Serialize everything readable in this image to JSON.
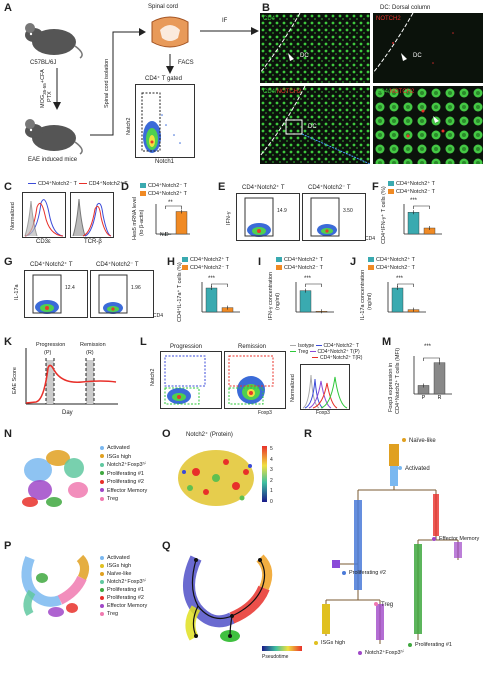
{
  "panels": {
    "A": {
      "label": "A",
      "mouse1": "C57BL/6J",
      "mouse2": "EAE induced mice",
      "arrow_text_1": "MOG",
      "arrow_text_1b": "35-55",
      "arrow_text_1c": "+CFA",
      "arrow_text_2": "PTX",
      "iso": "Spinal cord isolation",
      "spinal": "Spinal cord",
      "facs": "FACS",
      "gate": "CD4⁺ T gated",
      "ax_y": "Notch2",
      "ax_x": "Notch1",
      "if": "IF"
    },
    "B": {
      "label": "B",
      "title": "DC: Dorsal column",
      "p1": "CD4",
      "p2": "NOTCH2",
      "p3a": "CD4/",
      "p3b": "NOTCH2",
      "p4a": "CD4/",
      "p4b": "NOTCH2",
      "dc": "DC"
    },
    "C": {
      "label": "C",
      "leg1": "CD4⁺Notch2⁻ T",
      "leg2": "CD4⁺Notch2⁺ T",
      "yl": "Normalized",
      "x1": "CD3ε",
      "x2": "TCR-β"
    },
    "D": {
      "label": "D",
      "leg1": "CD4⁺Notch2⁻ T",
      "leg2": "CD4⁺Notch2⁺ T",
      "yl1": "Hes5 mRNA level",
      "yl2": "(to β-actin)",
      "sig": "**",
      "nd": "N.D",
      "ticks": [
        "0",
        "5",
        "10"
      ]
    },
    "E": {
      "label": "E",
      "t1": "CD4⁺Notch2⁺ T",
      "t2": "CD4⁺Notch2⁻ T",
      "v1": "14.9",
      "v2": "3.50",
      "yl": "IFN-γ",
      "xl": "CD4"
    },
    "F": {
      "label": "F",
      "leg1": "CD4⁺Notch2⁺ T",
      "leg2": "CD4⁺Notch2⁻ T",
      "sig": "***",
      "yl": "CD4⁺IFN-γ⁺ T cells (%)",
      "ticks": [
        "0",
        "5",
        "10",
        "15",
        "20"
      ]
    },
    "G": {
      "label": "G",
      "t1": "CD4⁺Notch2⁺ T",
      "t2": "CD4⁺Notch2⁻ T",
      "v1": "12.4",
      "v2": "1.96",
      "yl": "IL-17a",
      "xl": "CD4"
    },
    "H": {
      "label": "H",
      "leg1": "CD4⁺Notch2⁺ T",
      "leg2": "CD4⁺Notch2⁻ T",
      "sig": "***",
      "yl": "CD4⁺IL-17a⁺ T cells (%)",
      "ticks": [
        "0",
        "5",
        "10",
        "15"
      ]
    },
    "I": {
      "label": "I",
      "leg1": "CD4⁺Notch2⁺ T",
      "leg2": "CD4⁺Notch2⁻ T",
      "sig": "***",
      "yl1": "IFN-γ concentration",
      "yl2": "(ng/ml)",
      "ticks": [
        "0",
        "20",
        "40",
        "60",
        "80"
      ]
    },
    "J": {
      "label": "J",
      "leg1": "CD4⁺Notch2⁺ T",
      "leg2": "CD4⁺Notch2⁻ T",
      "sig": "***",
      "yl1": "IL-17a concentration",
      "yl2": "(ng/ml)",
      "ticks": [
        "0",
        "1",
        "2",
        "3",
        "4",
        "5"
      ]
    },
    "K": {
      "label": "K",
      "yl": "EAE Score",
      "xl": "Day",
      "prog": "Progression",
      "prog_s": "(P)",
      "rem": "Remission",
      "rem_s": "(R)"
    },
    "L": {
      "label": "L",
      "t1": "Progression",
      "t2": "Remission",
      "yl": "Notch2",
      "xl": "Foxp3",
      "yl2": "Normalized",
      "xl2": "Foxp3",
      "lg1": "Isotype",
      "lg2": "Treg",
      "lg3": "CD4⁺Notch2⁻ T",
      "lg4": "CD4⁺Notch2⁺ T(P)",
      "lg5": "CD4⁺Notch2⁺ T(R)"
    },
    "M": {
      "label": "M",
      "sig": "***",
      "yl1": "Foxp3 expression in",
      "yl2": "CD4⁺Notch2⁺ T cells (MFI)",
      "x": [
        "P",
        "R"
      ]
    },
    "N": {
      "label": "N",
      "legend": [
        "Activated",
        "ISGs high",
        "Notch2⁺Foxp3ʰⁱ",
        "Proliferating #1",
        "Proliferating #2",
        "Effector Memory",
        "Treg"
      ]
    },
    "O": {
      "label": "O",
      "title": "Notch2⁺ (Protein)",
      "scale": [
        "5",
        "4",
        "3",
        "2",
        "1",
        "0"
      ]
    },
    "P": {
      "label": "P",
      "legend": [
        "Activated",
        "ISGs high",
        "Naïve-like",
        "Notch2⁺Foxp3ʰⁱ",
        "Proliferating #1",
        "Proliferating #2",
        "Effector Memory",
        "Treg"
      ]
    },
    "Q": {
      "label": "Q",
      "pt": "Pseudotime"
    },
    "R": {
      "label": "R",
      "n1": "Naïve-like",
      "n2": "Activated",
      "n3": "Effector Memory",
      "n4": "Treg",
      "n5": "Proliferating #2",
      "n6": "Proliferating #1",
      "n7": "ISGs high",
      "n8": "Notch2⁺Foxp3ʰⁱ"
    }
  },
  "colors": {
    "teal": "#3aaab0",
    "orange": "#f08a24",
    "red": "#e8302a",
    "blue": "#3b4bd8",
    "green": "#2ec83a",
    "treg_pink": "#f07ab0"
  },
  "chart_data": [
    {
      "type": "bar",
      "panel": "D",
      "categories": [
        "CD4⁺Notch2⁻ T",
        "CD4⁺Notch2⁺ T"
      ],
      "values": [
        0,
        7.5
      ],
      "ylim": [
        0,
        10
      ]
    },
    {
      "type": "bar",
      "panel": "F",
      "categories": [
        "CD4⁺Notch2⁺ T",
        "CD4⁺Notch2⁻ T"
      ],
      "values": [
        14.5,
        4
      ],
      "ylim": [
        0,
        20
      ]
    },
    {
      "type": "bar",
      "panel": "H",
      "categories": [
        "CD4⁺Notch2⁺ T",
        "CD4⁺Notch2⁻ T"
      ],
      "values": [
        12,
        2.2
      ],
      "ylim": [
        0,
        15
      ]
    },
    {
      "type": "bar",
      "panel": "I",
      "categories": [
        "CD4⁺Notch2⁺ T",
        "CD4⁺Notch2⁻ T"
      ],
      "values": [
        57,
        2
      ],
      "ylim": [
        0,
        80
      ]
    },
    {
      "type": "bar",
      "panel": "J",
      "categories": [
        "CD4⁺Notch2⁺ T",
        "CD4⁺Notch2⁻ T"
      ],
      "values": [
        4,
        0.4
      ],
      "ylim": [
        0,
        5
      ]
    },
    {
      "type": "bar",
      "panel": "M",
      "categories": [
        "P",
        "R"
      ],
      "values": [
        45,
        165
      ],
      "ylim": [
        0,
        200
      ]
    }
  ]
}
